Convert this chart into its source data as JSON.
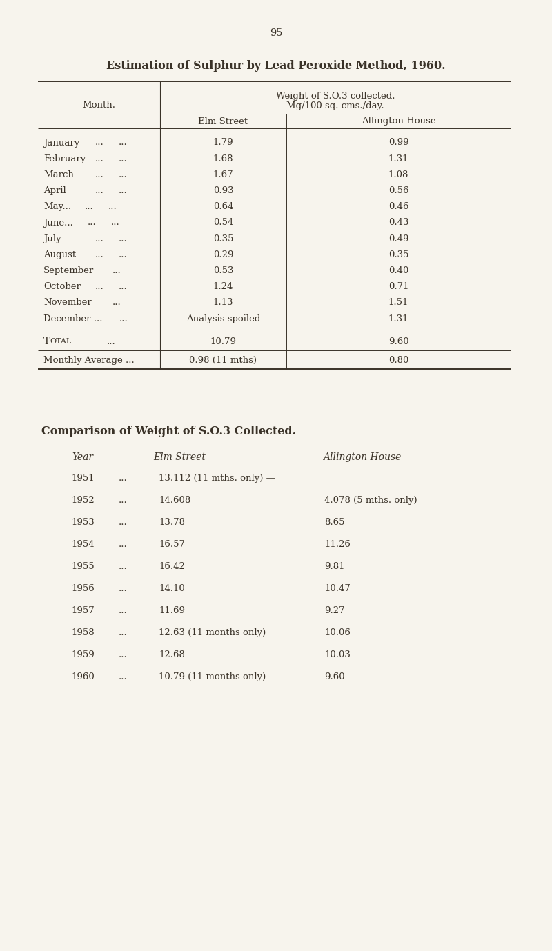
{
  "page_number": "95",
  "title": "Estimation of Sulphur by Lead Peroxide Method, 1960.",
  "table1_header_line1": "Weight of S.O.3 collected.",
  "table1_header_line2": "Mg/100 sq. cms./day.",
  "table1_col0_header": "Month.",
  "table1_col1_header": "Elm Street",
  "table1_col2_header": "Allington House",
  "months": [
    [
      "January",
      "...",
      "..."
    ],
    [
      "February",
      "...",
      "..."
    ],
    [
      "March",
      "...",
      "..."
    ],
    [
      "April",
      "...",
      "..."
    ],
    [
      "May...",
      "...",
      "..."
    ],
    [
      "June...",
      "...",
      "..."
    ],
    [
      "July",
      "...",
      "..."
    ],
    [
      "August",
      "...",
      "..."
    ],
    [
      "September",
      "...",
      ""
    ],
    [
      "October",
      "...",
      "..."
    ],
    [
      "November",
      "...",
      ""
    ],
    [
      "December ...",
      "...",
      ""
    ]
  ],
  "elm_values": [
    "1.79",
    "1.68",
    "1.67",
    "0.93",
    "0.64",
    "0.54",
    "0.35",
    "0.29",
    "0.53",
    "1.24",
    "1.13",
    "Analysis spoiled"
  ],
  "aling_values": [
    "0.99",
    "1.31",
    "1.08",
    "0.56",
    "0.46",
    "0.43",
    "0.49",
    "0.35",
    "0.40",
    "0.71",
    "1.51",
    "1.31"
  ],
  "total_elm": "10.79",
  "total_aling": "9.60",
  "avg_elm": "0.98 (11 mths)",
  "avg_aling": "0.80",
  "table2_title": "Comparison of Weight of S.O.3 Collected.",
  "table2_header_year": "Year",
  "table2_header_elm": "Elm Street",
  "table2_header_aling": "Allington House",
  "t2_years": [
    "1951",
    "1952",
    "1953",
    "1954",
    "1955",
    "1956",
    "1957",
    "1958",
    "1959",
    "1960"
  ],
  "t2_elm": [
    "13.112 (11 mths. only) —",
    "14.608",
    "13.78",
    "16.57",
    "16.42",
    "14.10",
    "11.69",
    "12.63 (11 months only)",
    "12.68",
    "10.79 (11 months only)"
  ],
  "t2_aling": [
    "",
    "4.078 (5 mths. only)",
    "8.65",
    "11.26",
    "9.81",
    "10.47",
    "9.27",
    "10.06",
    "10.03",
    "9.60"
  ],
  "bg_color": "#f7f4ed",
  "text_color": "#3a3228",
  "font_size": 9.5,
  "title_font_size": 11.5
}
